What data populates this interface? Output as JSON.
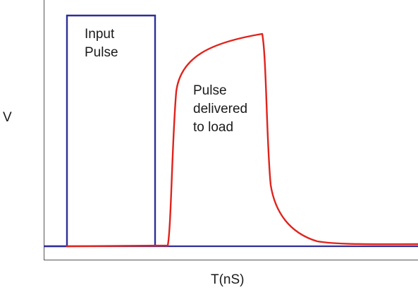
{
  "diagram": {
    "y_axis_label": "V",
    "x_axis_label": "T(nS)",
    "input_pulse_label": [
      "Input",
      "Pulse"
    ],
    "delivered_pulse_label": [
      "Pulse",
      "delivered",
      "to load"
    ],
    "colors": {
      "input_pulse": "#2e2e9a",
      "delivered_pulse": "#e0231c",
      "axes": "#555555",
      "text": "#1a1a1a"
    }
  }
}
